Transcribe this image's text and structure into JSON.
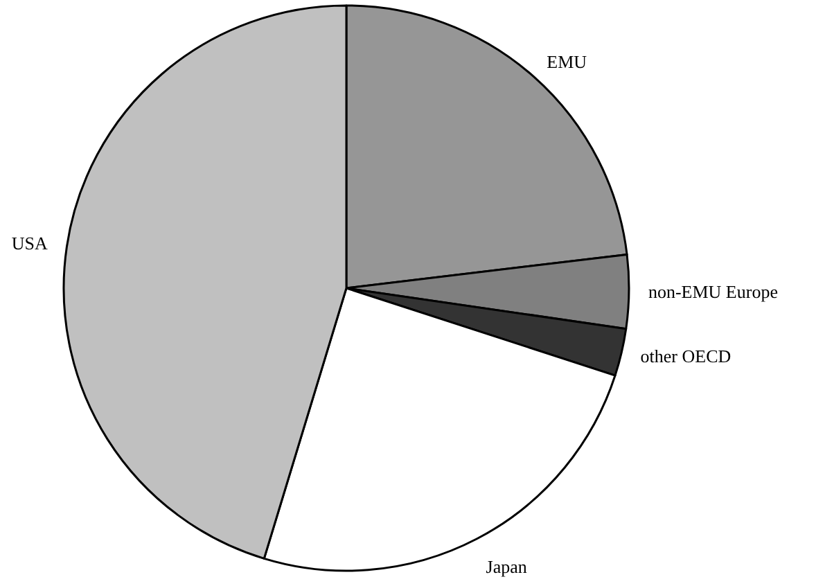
{
  "chart_data": {
    "type": "pie",
    "categories": [
      "EMU",
      "non-EMU Europe",
      "other OECD",
      "Japan",
      "USA"
    ],
    "values": [
      23.1,
      4.2,
      2.7,
      24.7,
      45.3
    ],
    "colors": [
      "#969696",
      "#808080",
      "#333333",
      "#ffffff",
      "#c0c0c0"
    ],
    "legend": false
  }
}
